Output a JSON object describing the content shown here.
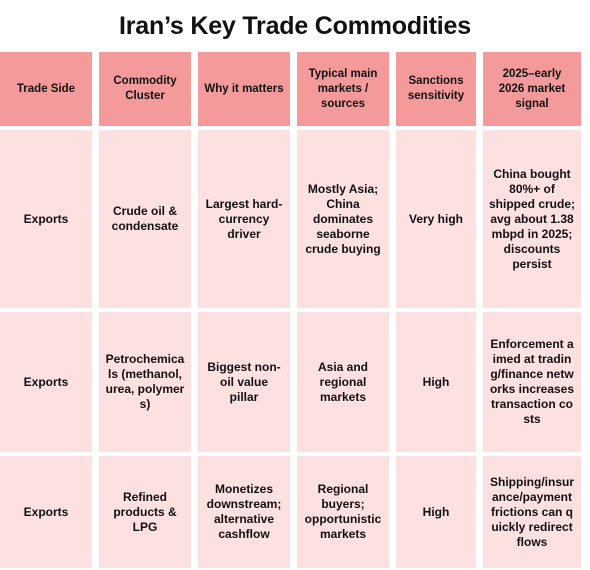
{
  "title": "Iran’s Key Trade Commodities",
  "colors": {
    "header_fill": "#f59a9a",
    "body_fill": "#fde0e0"
  },
  "table": {
    "headers": [
      "Trade Side",
      "Commodity Cluster",
      "Why it matters",
      "Typical main markets / sources",
      "Sanctions sensitivity",
      "2025–early 2026 market signal"
    ],
    "rows": [
      [
        "Exports",
        "Crude oil & condensate",
        "Largest hard-currency driver",
        "Mostly Asia; China dominates seaborne crude buying",
        "Very high",
        "China bought 80%+ of shipped crude; avg about 1.38 mbpd in 2025; discounts persist"
      ],
      [
        "Exports",
        "Petrochemicals (methanol, urea, polymers)",
        "Biggest non-oil value pillar",
        "Asia and regional markets",
        "High",
        "Enforcement aimed at trading/finance networks increases transaction costs"
      ],
      [
        "Exports",
        "Refined products & LPG",
        "Monetizes downstream; alternative cashflow",
        "Regional buyers; opportunistic markets",
        "High",
        "Shipping/insurance/payment frictions can quickly redirect flows"
      ]
    ]
  }
}
